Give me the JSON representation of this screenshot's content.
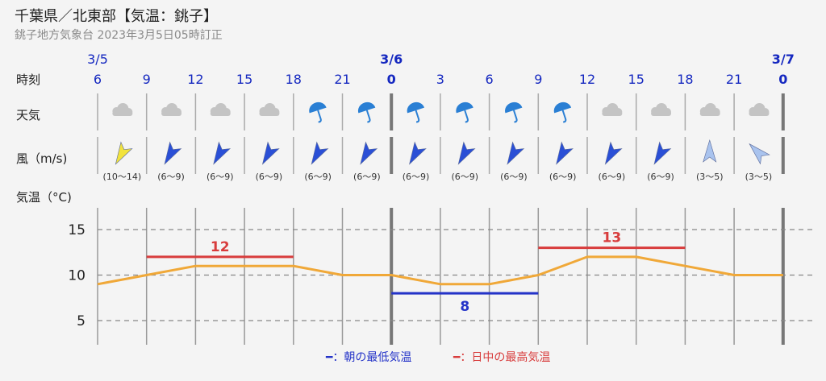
{
  "header": {
    "title": "千葉県／北東部【気温：銚子】",
    "subtitle": "銚子地方気象台 2023年3月5日05時訂正"
  },
  "chart_data": {
    "type": "line",
    "row_labels": {
      "time": "時刻",
      "weather": "天気",
      "wind": "風（m/s)",
      "temp": "気温（°C)"
    },
    "hours": [
      "6",
      "9",
      "12",
      "15",
      "18",
      "21",
      "0",
      "3",
      "6",
      "9",
      "12",
      "15",
      "18",
      "21",
      "0"
    ],
    "day_labels": [
      {
        "slot": 0,
        "text": "3/5",
        "bold": false
      },
      {
        "slot": 6,
        "text": "3/6",
        "bold": true
      },
      {
        "slot": 14,
        "text": "3/7",
        "bold": true
      }
    ],
    "weather": [
      "cloud",
      "cloud",
      "cloud",
      "cloud",
      "umbrella",
      "umbrella",
      "umbrella",
      "umbrella",
      "umbrella",
      "umbrella",
      "cloud",
      "cloud",
      "cloud",
      "cloud"
    ],
    "wind": [
      {
        "label": "(10〜14)",
        "dir": "SW",
        "color": "#f2e33c"
      },
      {
        "label": "(6〜9)",
        "dir": "SW",
        "color": "#2a4fd6"
      },
      {
        "label": "(6〜9)",
        "dir": "SW",
        "color": "#2a4fd6"
      },
      {
        "label": "(6〜9)",
        "dir": "SW",
        "color": "#2a4fd6"
      },
      {
        "label": "(6〜9)",
        "dir": "SW",
        "color": "#2a4fd6"
      },
      {
        "label": "(6〜9)",
        "dir": "SW",
        "color": "#2a4fd6"
      },
      {
        "label": "(6〜9)",
        "dir": "SW",
        "color": "#2a4fd6"
      },
      {
        "label": "(6〜9)",
        "dir": "SW",
        "color": "#2a4fd6"
      },
      {
        "label": "(6〜9)",
        "dir": "SW",
        "color": "#2a4fd6"
      },
      {
        "label": "(6〜9)",
        "dir": "SW",
        "color": "#2a4fd6"
      },
      {
        "label": "(6〜9)",
        "dir": "SW",
        "color": "#2a4fd6"
      },
      {
        "label": "(6〜9)",
        "dir": "SW",
        "color": "#2a4fd6"
      },
      {
        "label": "(3〜5)",
        "dir": "N",
        "color": "#a9c3ee"
      },
      {
        "label": "(3〜5)",
        "dir": "NW",
        "color": "#a9c3ee"
      }
    ],
    "temperature": [
      9,
      10,
      11,
      11,
      11,
      10,
      10,
      9,
      9,
      10,
      12,
      12,
      11,
      10,
      10
    ],
    "y_ticks": [
      5,
      10,
      15
    ],
    "ylim": [
      2,
      18
    ],
    "max_temps": [
      {
        "from_slot": 1,
        "to_slot": 4,
        "value": 12
      },
      {
        "from_slot": 9,
        "to_slot": 12,
        "value": 13
      }
    ],
    "min_temps": [
      {
        "from_slot": 6,
        "to_slot": 9,
        "value": 8
      }
    ],
    "legend": {
      "min_label": "━：朝の最低気温",
      "max_label": "━：日中の最高気温"
    },
    "colors": {
      "line": "#f0a838",
      "max": "#d83c3c",
      "min": "#2433c8",
      "hour": "#1528c0",
      "grid": "#9a9a9a",
      "cloud": "#c4c4c4",
      "umbrella": "#2a7fd4"
    }
  }
}
